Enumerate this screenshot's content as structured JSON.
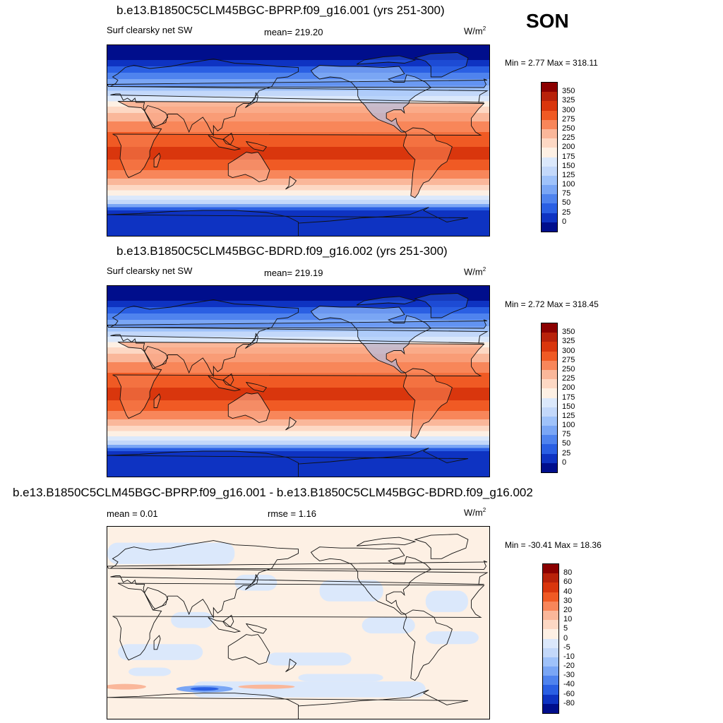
{
  "season": "SON",
  "panels": [
    {
      "title": "b.e13.B1850C5CLM45BGC-BPRP.f09_g16.001 (yrs 251-300)",
      "left": "Surf clearsky net SW",
      "center": "mean= 219.20",
      "units": "W/m",
      "units_sup": "2",
      "minmax": "Min =   2.77 Max = 318.11"
    },
    {
      "title": "b.e13.B1850C5CLM45BGC-BDRD.f09_g16.002 (yrs 251-300)",
      "left": "Surf clearsky net SW",
      "center": "mean= 219.19",
      "units": "W/m",
      "units_sup": "2",
      "minmax": "Min =   2.72 Max = 318.45"
    },
    {
      "title": "b.e13.B1850C5CLM45BGC-BPRP.f09_g16.001 - b.e13.B1850C5CLM45BGC-BDRD.f09_g16.002",
      "left": "mean =   0.01",
      "center": "rmse =   1.16",
      "units": "W/m",
      "units_sup": "2",
      "minmax": "Min = -30.41 Max =  18.36"
    }
  ],
  "chart_data": [
    {
      "type": "heatmap",
      "subtype": "global contour map",
      "variable": "Surf clearsky net SW",
      "case": "b.e13.B1850C5CLM45BGC-BPRP.f09_g16.001 (yrs 251-300)",
      "mean": 219.2,
      "min": 2.77,
      "max": 318.11,
      "colorbar_labels": [
        "350",
        "325",
        "300",
        "275",
        "250",
        "225",
        "200",
        "175",
        "150",
        "125",
        "100",
        "75",
        "50",
        "25",
        "0"
      ],
      "colorbar_colors": [
        "#8b0000",
        "#b8220a",
        "#d9360d",
        "#f05a24",
        "#f8865a",
        "#fab79a",
        "#fdd8c4",
        "#fdf0e4",
        "#dbe8fb",
        "#c3d8fa",
        "#9fc2fa",
        "#7aa6f5",
        "#4f83ee",
        "#2a5fe3",
        "#0e33c2",
        "#000e8c"
      ]
    },
    {
      "type": "heatmap",
      "subtype": "global contour map",
      "variable": "Surf clearsky net SW",
      "case": "b.e13.B1850C5CLM45BGC-BDRD.f09_g16.002 (yrs 251-300)",
      "mean": 219.19,
      "min": 2.72,
      "max": 318.45,
      "colorbar_labels": [
        "350",
        "325",
        "300",
        "275",
        "250",
        "225",
        "200",
        "175",
        "150",
        "125",
        "100",
        "75",
        "50",
        "25",
        "0"
      ],
      "colorbar_colors": [
        "#8b0000",
        "#b8220a",
        "#d9360d",
        "#f05a24",
        "#f8865a",
        "#fab79a",
        "#fdd8c4",
        "#fdf0e4",
        "#dbe8fb",
        "#c3d8fa",
        "#9fc2fa",
        "#7aa6f5",
        "#4f83ee",
        "#2a5fe3",
        "#0e33c2",
        "#000e8c"
      ]
    },
    {
      "type": "heatmap",
      "subtype": "global difference map",
      "case": "b.e13.B1850C5CLM45BGC-BPRP.f09_g16.001 - b.e13.B1850C5CLM45BGC-BDRD.f09_g16.002",
      "mean": 0.01,
      "rmse": 1.16,
      "min": -30.41,
      "max": 18.36,
      "colorbar_labels": [
        "80",
        "60",
        "40",
        "30",
        "20",
        "10",
        "5",
        "0",
        "-5",
        "-10",
        "-20",
        "-30",
        "-40",
        "-60",
        "-80"
      ],
      "colorbar_colors": [
        "#8b0000",
        "#b8220a",
        "#d9360d",
        "#f05a24",
        "#f8865a",
        "#fab79a",
        "#fdd8c4",
        "#fdf0e4",
        "#dbe8fb",
        "#c3d8fa",
        "#9fc2fa",
        "#7aa6f5",
        "#4f83ee",
        "#2a5fe3",
        "#0e33c2",
        "#000e8c"
      ]
    }
  ]
}
